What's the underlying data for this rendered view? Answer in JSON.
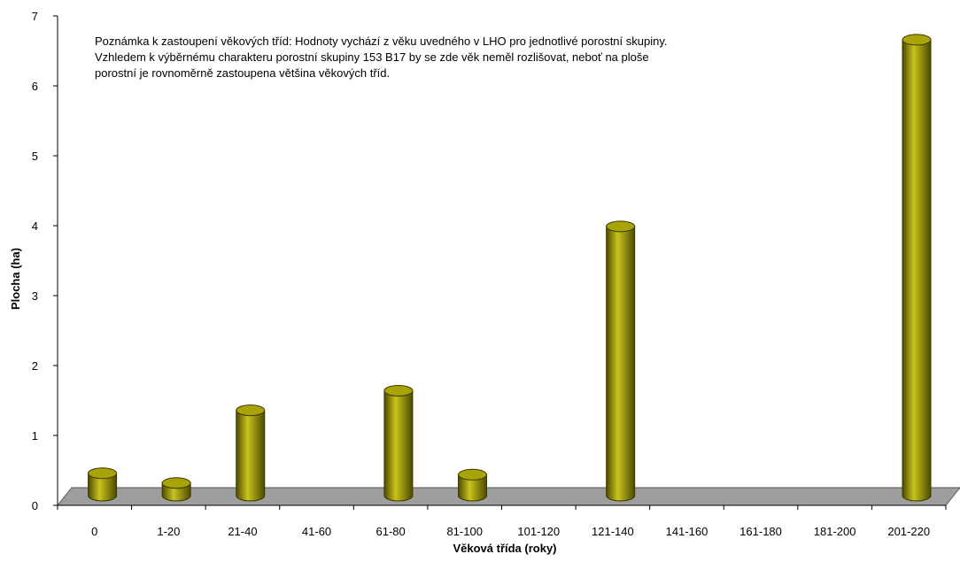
{
  "chart_data": {
    "type": "bar",
    "style": "3d-cylinder",
    "title": "",
    "xlabel": "Věková třída (roky)",
    "ylabel": "Plocha (ha)",
    "ylim": [
      0,
      7
    ],
    "yticks": [
      0,
      1,
      2,
      3,
      4,
      5,
      6,
      7
    ],
    "grid": false,
    "legend": "none",
    "categories": [
      "0",
      "1-20",
      "21-40",
      "41-60",
      "61-80",
      "81-100",
      "101-120",
      "121-140",
      "141-160",
      "161-180",
      "181-200",
      "201-220"
    ],
    "values": [
      0.32,
      0.18,
      1.22,
      0,
      1.5,
      0.3,
      0,
      3.85,
      0,
      0,
      0,
      6.52
    ],
    "annotation": [
      "Poznámka k zastoupení věkových tříd:  Hodnoty vychází z věku uvedného v  LHO pro jednotlivé porostní skupiny.",
      "Vzhledem k výběrnému charakteru porostní skupiny 153 B17 by se zde věk neměl rozlišovat, neboť na ploše",
      "porostní  je rovnoměrně zastoupena většina věkových tříd."
    ],
    "colors": {
      "bar": "#8a8400",
      "bar_dark": "#4d4a00",
      "bar_light": "#c9c31f",
      "bar_top": "#a9a30a",
      "floor": "#9e9e9e"
    }
  }
}
